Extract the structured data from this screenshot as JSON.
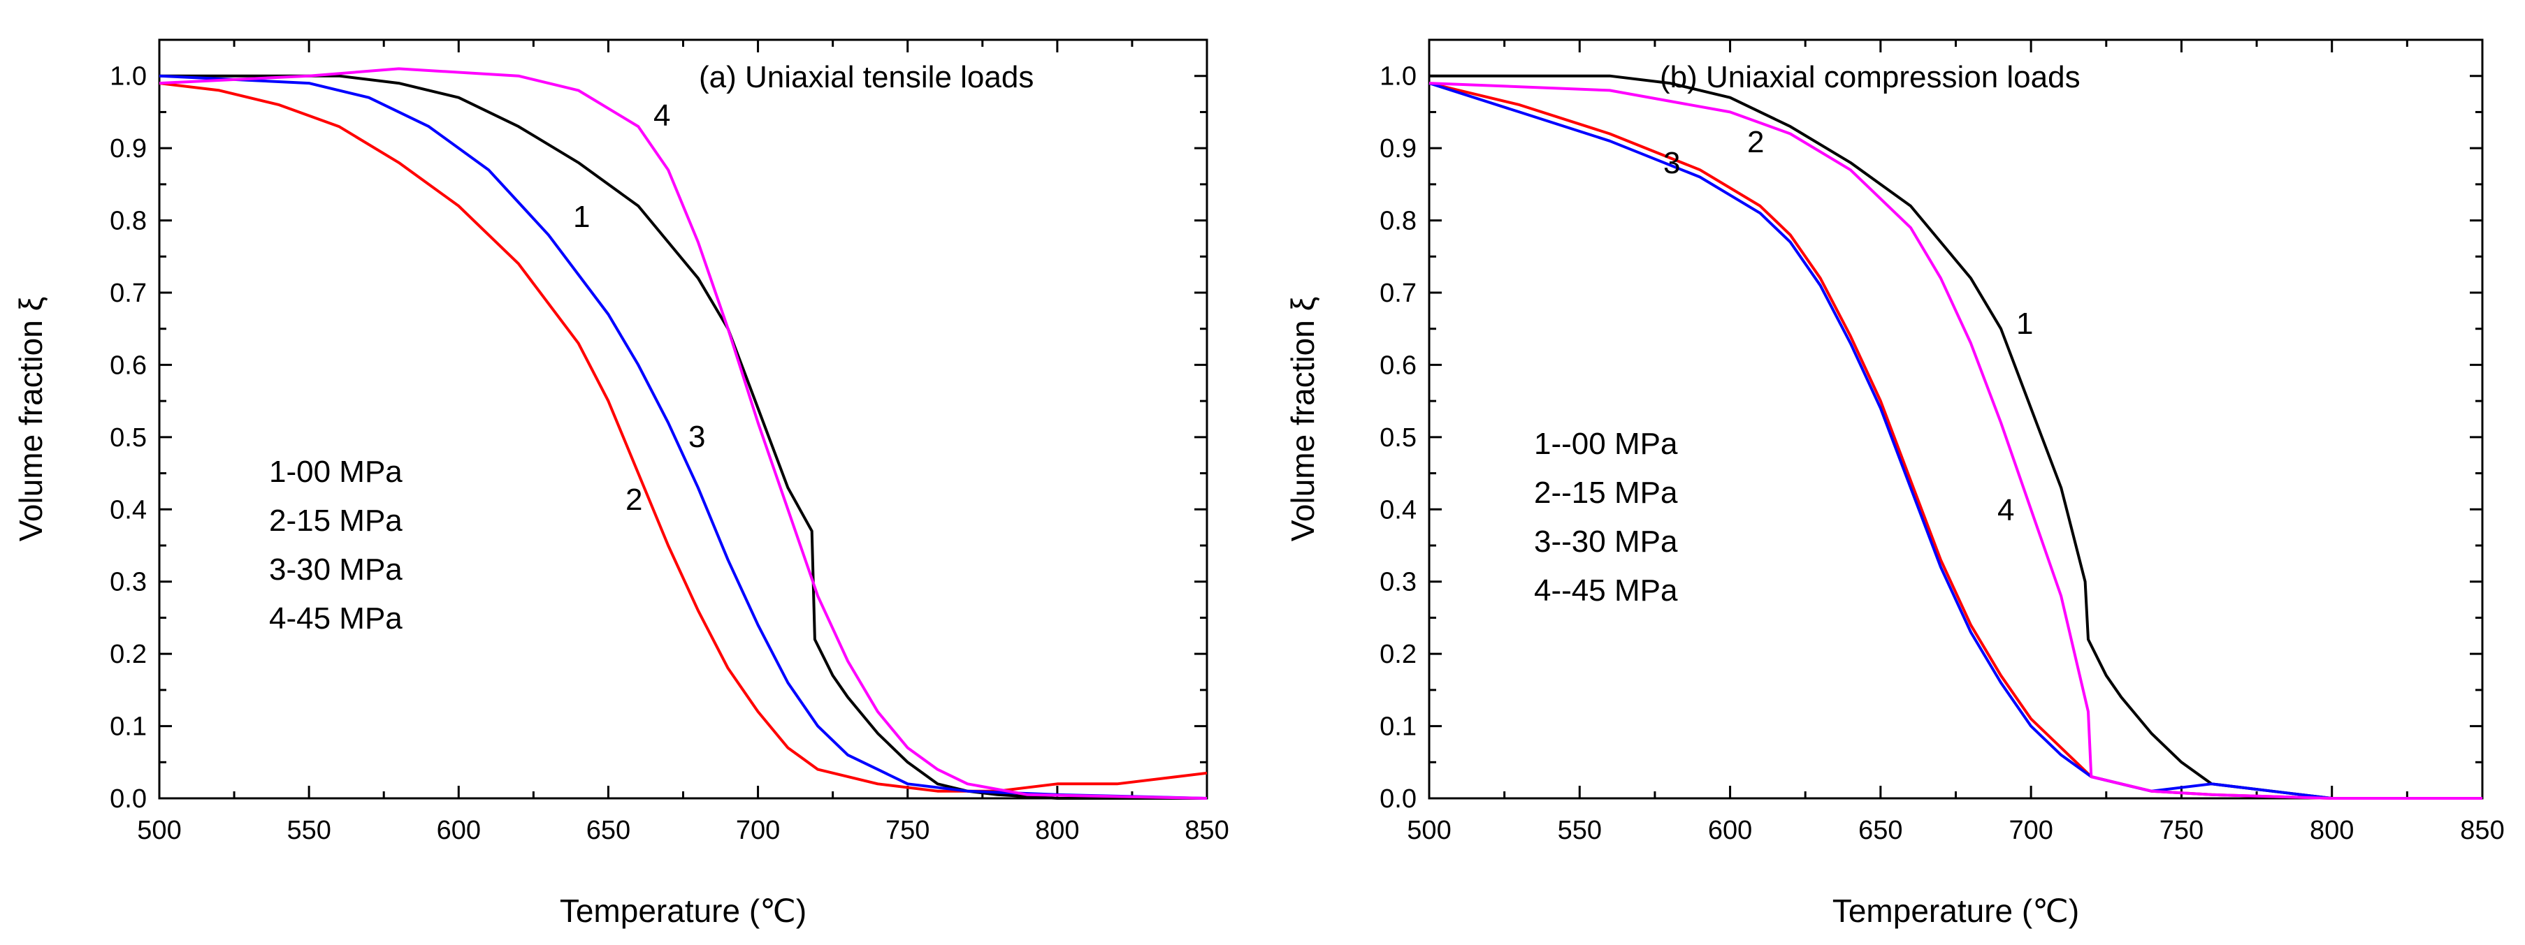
{
  "chart_data": [
    {
      "type": "line",
      "title": "(a) Uniaxial tensile loads",
      "xlabel": "Temperature (℃)",
      "ylabel": "Volume fraction ξ",
      "xlim": [
        500,
        850
      ],
      "ylim": [
        0,
        1.05
      ],
      "xticks": [
        500,
        550,
        600,
        650,
        700,
        750,
        800,
        850
      ],
      "yticks": [
        0.0,
        0.1,
        0.2,
        0.3,
        0.4,
        0.5,
        0.6,
        0.7,
        0.8,
        0.9,
        1.0
      ],
      "xtick_labels": [
        "500",
        "550",
        "600",
        "650",
        "700",
        "750",
        "800",
        "850"
      ],
      "ytick_labels": [
        "0.0",
        "0.1",
        "0.2",
        "0.3",
        "0.4",
        "0.5",
        "0.6",
        "0.7",
        "0.8",
        "0.9",
        "1.0"
      ],
      "grid": false,
      "legend_lines": [
        "1-00 MPa",
        "2-15 MPa",
        "3-30 MPa",
        "4-45 MPa"
      ],
      "series": [
        {
          "name": "1",
          "label": "1",
          "color": "#000000",
          "x": [
            500,
            560,
            580,
            600,
            620,
            640,
            660,
            680,
            690,
            700,
            710,
            718,
            719,
            725,
            730,
            740,
            750,
            760,
            770,
            780,
            800,
            850
          ],
          "y": [
            1.0,
            1.0,
            0.99,
            0.97,
            0.93,
            0.88,
            0.82,
            0.72,
            0.65,
            0.54,
            0.43,
            0.37,
            0.22,
            0.17,
            0.14,
            0.09,
            0.05,
            0.02,
            0.01,
            0.005,
            0.0,
            0.0
          ]
        },
        {
          "name": "2",
          "label": "2",
          "color": "#ff0000",
          "x": [
            500,
            520,
            540,
            560,
            580,
            600,
            620,
            640,
            650,
            660,
            670,
            680,
            690,
            700,
            710,
            720,
            740,
            760,
            780,
            800,
            820,
            840,
            850
          ],
          "y": [
            0.99,
            0.98,
            0.96,
            0.93,
            0.88,
            0.82,
            0.74,
            0.63,
            0.55,
            0.45,
            0.35,
            0.26,
            0.18,
            0.12,
            0.07,
            0.04,
            0.02,
            0.01,
            0.01,
            0.02,
            0.02,
            0.03,
            0.035
          ]
        },
        {
          "name": "3",
          "label": "3",
          "color": "#0000ff",
          "x": [
            500,
            550,
            570,
            590,
            610,
            630,
            650,
            660,
            670,
            680,
            690,
            700,
            710,
            720,
            730,
            740,
            750,
            770,
            800,
            850
          ],
          "y": [
            1.0,
            0.99,
            0.97,
            0.93,
            0.87,
            0.78,
            0.67,
            0.6,
            0.52,
            0.43,
            0.33,
            0.24,
            0.16,
            0.1,
            0.06,
            0.04,
            0.02,
            0.01,
            0.005,
            0.0
          ]
        },
        {
          "name": "4",
          "label": "4",
          "color": "#ff00ff",
          "x": [
            500,
            550,
            580,
            620,
            640,
            660,
            670,
            680,
            690,
            700,
            710,
            720,
            730,
            740,
            750,
            760,
            770,
            790,
            850
          ],
          "y": [
            0.99,
            1.0,
            1.01,
            1.0,
            0.98,
            0.93,
            0.87,
            0.77,
            0.65,
            0.52,
            0.4,
            0.28,
            0.19,
            0.12,
            0.07,
            0.04,
            0.02,
            0.005,
            0.0
          ]
        }
      ]
    },
    {
      "type": "line",
      "title": "(b) Uniaxial compression loads",
      "xlabel": "Temperature (℃)",
      "ylabel": "Volume fraction ξ",
      "xlim": [
        500,
        850
      ],
      "ylim": [
        0,
        1.05
      ],
      "xticks": [
        500,
        550,
        600,
        650,
        700,
        750,
        800,
        850
      ],
      "yticks": [
        0.0,
        0.1,
        0.2,
        0.3,
        0.4,
        0.5,
        0.6,
        0.7,
        0.8,
        0.9,
        1.0
      ],
      "xtick_labels": [
        "500",
        "550",
        "600",
        "650",
        "700",
        "750",
        "800",
        "850"
      ],
      "ytick_labels": [
        "0.0",
        "0.1",
        "0.2",
        "0.3",
        "0.4",
        "0.5",
        "0.6",
        "0.7",
        "0.8",
        "0.9",
        "1.0"
      ],
      "grid": false,
      "legend_lines": [
        "1--00 MPa",
        "2--15 MPa",
        "3--30 MPa",
        "4--45 MPa"
      ],
      "series": [
        {
          "name": "1",
          "label": "1",
          "color": "#000000",
          "x": [
            500,
            560,
            580,
            600,
            620,
            640,
            660,
            680,
            690,
            700,
            710,
            718,
            719,
            725,
            730,
            740,
            750,
            760,
            780,
            800,
            850
          ],
          "y": [
            1.0,
            1.0,
            0.99,
            0.97,
            0.93,
            0.88,
            0.82,
            0.72,
            0.65,
            0.54,
            0.43,
            0.3,
            0.22,
            0.17,
            0.14,
            0.09,
            0.05,
            0.02,
            0.01,
            0.0,
            0.0
          ]
        },
        {
          "name": "2",
          "label": "2",
          "color": "#ff0000",
          "x": [
            500,
            530,
            560,
            590,
            610,
            620,
            630,
            640,
            650,
            660,
            670,
            680,
            690,
            700,
            710,
            720,
            740,
            760,
            800,
            850
          ],
          "y": [
            0.99,
            0.96,
            0.92,
            0.87,
            0.82,
            0.78,
            0.72,
            0.64,
            0.55,
            0.44,
            0.33,
            0.24,
            0.17,
            0.11,
            0.07,
            0.03,
            0.01,
            0.005,
            0.0,
            0.0
          ]
        },
        {
          "name": "3",
          "label": "3",
          "color": "#0000ff",
          "x": [
            500,
            530,
            560,
            590,
            610,
            620,
            630,
            640,
            650,
            660,
            670,
            680,
            690,
            700,
            710,
            720,
            740,
            760,
            780,
            800,
            850
          ],
          "y": [
            0.99,
            0.95,
            0.91,
            0.86,
            0.81,
            0.77,
            0.71,
            0.63,
            0.54,
            0.43,
            0.32,
            0.23,
            0.16,
            0.1,
            0.06,
            0.03,
            0.01,
            0.02,
            0.01,
            0.0,
            0.0
          ]
        },
        {
          "name": "4",
          "label": "4",
          "color": "#ff00ff",
          "x": [
            500,
            560,
            600,
            620,
            640,
            660,
            670,
            680,
            690,
            700,
            710,
            719,
            720,
            730,
            740,
            760,
            800,
            850
          ],
          "y": [
            0.99,
            0.98,
            0.95,
            0.92,
            0.87,
            0.79,
            0.72,
            0.63,
            0.52,
            0.4,
            0.28,
            0.12,
            0.03,
            0.02,
            0.01,
            0.005,
            0.0,
            0.0
          ]
        }
      ]
    }
  ]
}
